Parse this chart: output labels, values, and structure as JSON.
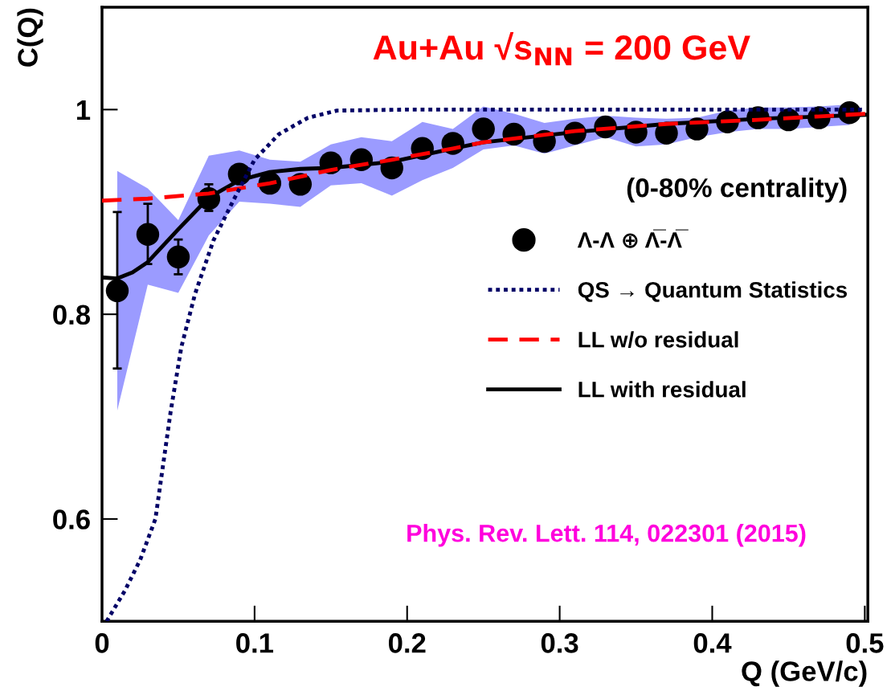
{
  "chart_data": {
    "type": "scatter",
    "title": "Au+Au √s$_{NN}$ = 200 GeV",
    "xlabel": "Q (GeV/c)",
    "ylabel": "C(Q)",
    "legend_title": "(0-80% centrality)",
    "annotations": [
      "Phys. Rev. Lett. 114, 022301 (2015)"
    ],
    "xlim": [
      0,
      0.502
    ],
    "ylim": [
      0.5,
      1.1
    ],
    "xticks": [
      0,
      0.1,
      0.2,
      0.3,
      0.4,
      0.5
    ],
    "yticks": [
      0.6,
      0.8,
      1
    ],
    "grid": false,
    "legend": "right",
    "series": [
      {
        "name": "Λ-Λ ⊕ Λ̅-Λ̅",
        "color": "#000000",
        "marker": "circle",
        "x": [
          0.01,
          0.03,
          0.05,
          0.07,
          0.09,
          0.11,
          0.13,
          0.15,
          0.17,
          0.19,
          0.21,
          0.23,
          0.25,
          0.27,
          0.29,
          0.31,
          0.33,
          0.35,
          0.37,
          0.39,
          0.41,
          0.43,
          0.45,
          0.47,
          0.49
        ],
        "values": [
          0.823,
          0.878,
          0.856,
          0.913,
          0.937,
          0.928,
          0.927,
          0.948,
          0.951,
          0.943,
          0.962,
          0.967,
          0.981,
          0.976,
          0.969,
          0.977,
          0.983,
          0.978,
          0.977,
          0.981,
          0.988,
          0.992,
          0.99,
          0.992,
          0.997
        ],
        "errors": [
          [
            0.747,
            0.9
          ],
          [
            0.849,
            0.908
          ],
          [
            0.839,
            0.873
          ],
          [
            0.901,
            0.927
          ],
          null,
          null,
          null,
          null,
          null,
          null,
          null,
          null,
          null,
          null,
          null,
          null,
          null,
          null,
          null,
          null,
          null,
          null,
          null,
          null,
          null
        ],
        "lower": [
          0.706,
          0.829,
          0.821,
          0.877,
          0.91,
          0.908,
          0.905,
          0.926,
          0.928,
          0.916,
          0.931,
          0.943,
          0.961,
          0.965,
          0.957,
          0.965,
          0.973,
          0.964,
          0.966,
          0.973,
          0.978,
          0.981,
          0.981,
          0.983,
          0.985
        ],
        "upper": [
          0.94,
          0.923,
          0.892,
          0.955,
          0.96,
          0.951,
          0.949,
          0.966,
          0.973,
          0.969,
          0.988,
          0.981,
          1.003,
          0.996,
          0.987,
          0.991,
          0.994,
          0.992,
          0.991,
          0.992,
          0.999,
          1.002,
          1.002,
          1.003,
          1.005
        ]
      },
      {
        "type": "line",
        "name": "QS → Quantum Statistics",
        "color": "#000066",
        "line_style": "dotted",
        "x": [
          0.003,
          0.015,
          0.025,
          0.035,
          0.045,
          0.052,
          0.061,
          0.073,
          0.086,
          0.1,
          0.116,
          0.135,
          0.154,
          0.2,
          0.3,
          0.4,
          0.5
        ],
        "values": [
          0.5,
          0.53,
          0.56,
          0.6,
          0.705,
          0.768,
          0.82,
          0.872,
          0.911,
          0.951,
          0.976,
          0.992,
          0.999,
          1.0,
          1.0,
          1.0,
          1.0
        ]
      },
      {
        "type": "line",
        "name": "LL w/o residual",
        "color": "#ff0000",
        "line_style": "dashed",
        "x": [
          0,
          0.03,
          0.07,
          0.11,
          0.15,
          0.19,
          0.23,
          0.25,
          0.31,
          0.37,
          0.43,
          0.49,
          0.502
        ],
        "values": [
          0.911,
          0.913,
          0.918,
          0.928,
          0.941,
          0.951,
          0.962,
          0.968,
          0.979,
          0.986,
          0.99,
          0.995,
          0.996
        ]
      },
      {
        "type": "line",
        "name": "LL with residual",
        "color": "#000000",
        "line_style": "solid",
        "x": [
          0,
          0.01,
          0.02,
          0.03,
          0.05,
          0.07,
          0.09,
          0.11,
          0.13,
          0.15,
          0.19,
          0.23,
          0.25,
          0.31,
          0.37,
          0.43,
          0.502
        ],
        "values": [
          0.836,
          0.835,
          0.841,
          0.851,
          0.883,
          0.914,
          0.931,
          0.939,
          0.942,
          0.943,
          0.949,
          0.962,
          0.968,
          0.978,
          0.986,
          0.991,
          0.995
        ]
      }
    ]
  }
}
